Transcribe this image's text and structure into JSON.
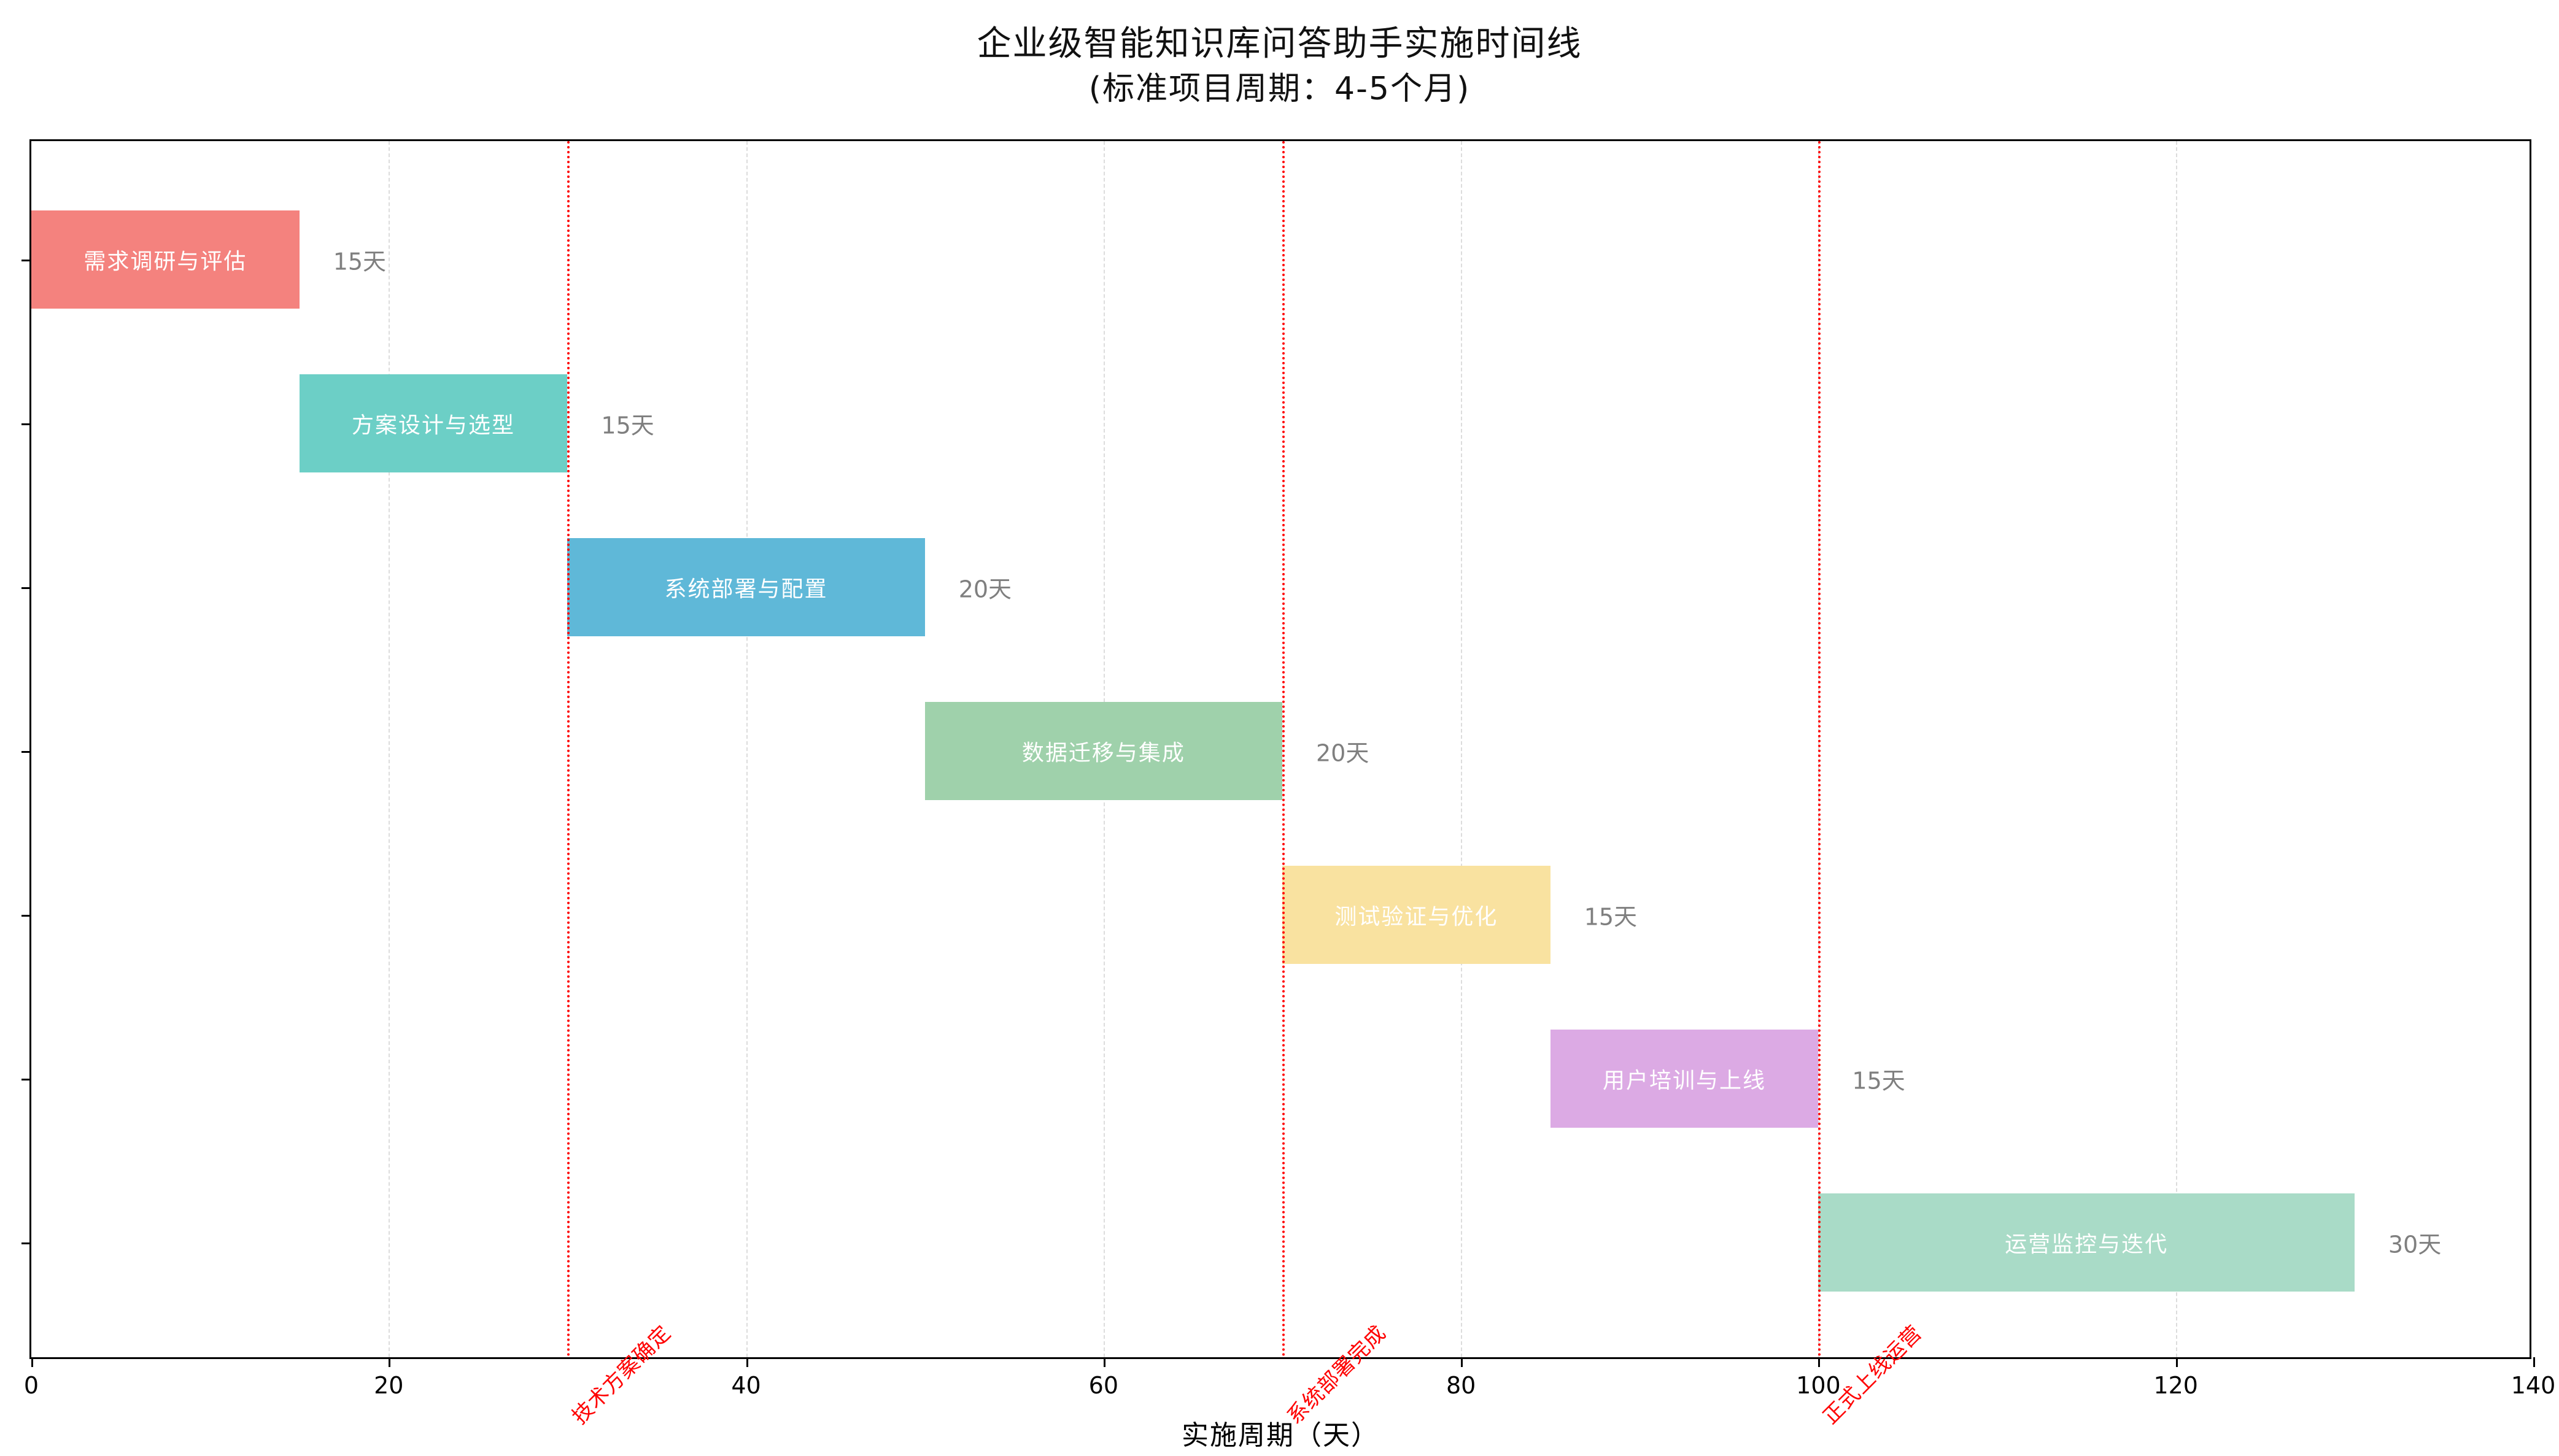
{
  "title": "企业级智能知识库问答助手实施时间线",
  "subtitle": "(标准项目周期：4-5个月)",
  "xlabel": "实施周期（天）",
  "chart_data": {
    "type": "gantt",
    "title": "企业级智能知识库问答助手实施时间线",
    "subtitle": "(标准项目周期：4-5个月)",
    "xlabel": "实施周期（天）",
    "xlim": [
      0,
      140
    ],
    "x_ticks": [
      0,
      20,
      40,
      60,
      80,
      100,
      120,
      140
    ],
    "grid_ticks": [
      20,
      40,
      60,
      80,
      100,
      120
    ],
    "grid_style": "dashed",
    "tasks": [
      {
        "name": "需求调研与评估",
        "start": 0,
        "duration": 15,
        "duration_label": "15天",
        "color": "#f4827e"
      },
      {
        "name": "方案设计与选型",
        "start": 15,
        "duration": 15,
        "duration_label": "15天",
        "color": "#6ccfc6"
      },
      {
        "name": "系统部署与配置",
        "start": 30,
        "duration": 20,
        "duration_label": "20天",
        "color": "#5fb8d8"
      },
      {
        "name": "数据迁移与集成",
        "start": 50,
        "duration": 20,
        "duration_label": "20天",
        "color": "#9fd1ab"
      },
      {
        "name": "测试验证与优化",
        "start": 70,
        "duration": 15,
        "duration_label": "15天",
        "color": "#f9e2a0"
      },
      {
        "name": "用户培训与上线",
        "start": 85,
        "duration": 15,
        "duration_label": "15天",
        "color": "#dcaae4"
      },
      {
        "name": "运营监控与迭代",
        "start": 100,
        "duration": 30,
        "duration_label": "30天",
        "color": "#a9dbc7"
      }
    ],
    "milestones": [
      {
        "x": 30,
        "label": "技术方案确定"
      },
      {
        "x": 70,
        "label": "系统部署完成"
      },
      {
        "x": 100,
        "label": "正式上线运营"
      }
    ],
    "colors": {
      "milestone_line": "#ff0000",
      "milestone_text": "#ff0000",
      "duration_text": "#7f7f7f",
      "bar_text": "#ffffff",
      "grid": "#dcdcdc",
      "axis": "#000000",
      "background": "#ffffff"
    }
  }
}
